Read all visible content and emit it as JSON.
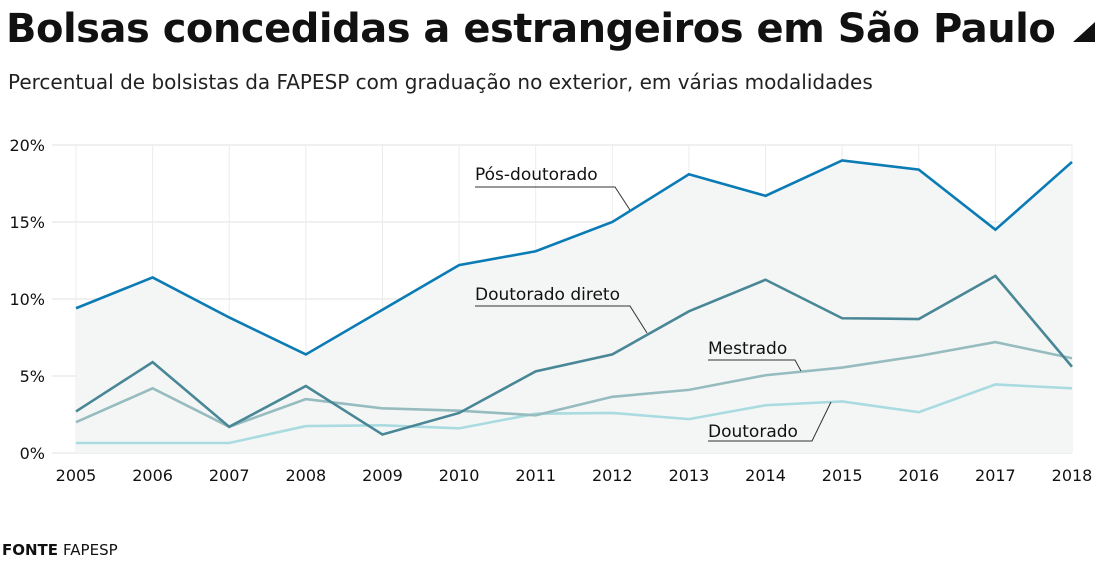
{
  "title": "Bolsas concedidas a estrangeiros em São Paulo",
  "subtitle": "Percentual de bolsistas da FAPESP com graduação no exterior, em várias modalidades",
  "title_icon": "corner-triangle-icon",
  "footer": {
    "label": "FONTE",
    "source": "FAPESP"
  },
  "colors": {
    "pos_doutorado": "#0a7bb5",
    "doutorado_direto": "#4a8796",
    "mestrado": "#97bcbf",
    "doutorado": "#a9dbe0",
    "area_fill": "#f4f6f6",
    "grid": "#ececec",
    "leader": "#333333"
  },
  "chart_data": {
    "type": "line",
    "title": "Bolsas concedidas a estrangeiros em São Paulo",
    "subtitle": "Percentual de bolsistas da FAPESP com graduação no exterior, em várias modalidades",
    "xlabel": "",
    "ylabel": "",
    "x": [
      "2005",
      "2006",
      "2007",
      "2008",
      "2009",
      "2010",
      "2011",
      "2012",
      "2013",
      "2014",
      "2015",
      "2016",
      "2017",
      "2018"
    ],
    "ylim": [
      0,
      20
    ],
    "yticks": [
      0,
      5,
      10,
      15,
      20
    ],
    "ytick_labels": [
      "0%",
      "5%",
      "10%",
      "15%",
      "20%"
    ],
    "grid": true,
    "legend": "inline-labels",
    "series": [
      {
        "name": "Pós-doutorado",
        "key": "pos_doutorado",
        "values": [
          9.4,
          11.4,
          8.8,
          6.4,
          9.3,
          12.2,
          13.1,
          15.0,
          18.1,
          16.7,
          19.0,
          18.4,
          14.5,
          18.9
        ],
        "filled": true
      },
      {
        "name": "Doutorado direto",
        "key": "doutorado_direto",
        "values": [
          2.7,
          5.9,
          1.7,
          4.35,
          1.2,
          2.6,
          5.3,
          6.4,
          9.2,
          11.25,
          8.75,
          8.7,
          11.5,
          5.6
        ]
      },
      {
        "name": "Mestrado",
        "key": "mestrado",
        "values": [
          2.0,
          4.2,
          1.7,
          3.5,
          2.9,
          2.75,
          2.45,
          3.65,
          4.1,
          5.05,
          5.55,
          6.3,
          7.2,
          6.15
        ]
      },
      {
        "name": "Doutorado",
        "key": "doutorado",
        "values": [
          0.65,
          0.65,
          0.65,
          1.75,
          1.8,
          1.6,
          2.55,
          2.6,
          2.2,
          3.1,
          3.35,
          2.65,
          4.45,
          4.2
        ]
      }
    ],
    "annotations": [
      {
        "text": "Pós-doutorado",
        "series": "pos_doutorado"
      },
      {
        "text": "Doutorado direto",
        "series": "doutorado_direto"
      },
      {
        "text": "Mestrado",
        "series": "mestrado"
      },
      {
        "text": "Doutorado",
        "series": "doutorado"
      }
    ]
  }
}
